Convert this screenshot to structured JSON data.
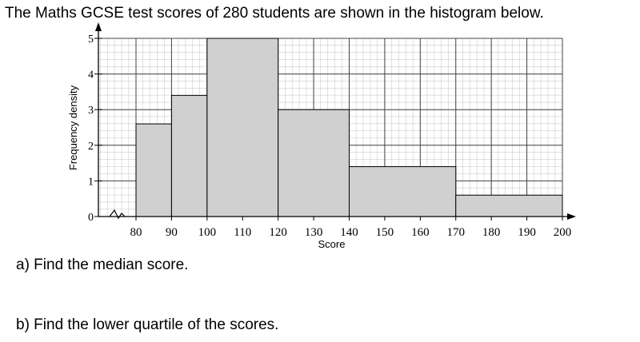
{
  "question": "The Maths GCSE test scores of 280 students are shown in the histogram below.",
  "chart_data": {
    "type": "histogram",
    "xlabel": "Score",
    "ylabel": "Frequency density",
    "bins": [
      80,
      90,
      100,
      120,
      140,
      170,
      200
    ],
    "values": [
      2.6,
      3.4,
      5,
      3,
      1.4,
      0.6
    ],
    "color": "#d0d0d0",
    "xlim": [
      80,
      200
    ],
    "xticks": [
      80,
      90,
      100,
      110,
      120,
      130,
      140,
      150,
      160,
      170,
      180,
      190,
      200
    ],
    "ylim": [
      0,
      5
    ],
    "yticks": [
      0,
      1,
      2,
      3,
      4,
      5
    ],
    "grid": true
  },
  "parts": [
    "a) Find the median score.",
    "b) Find the lower quartile of the scores."
  ]
}
